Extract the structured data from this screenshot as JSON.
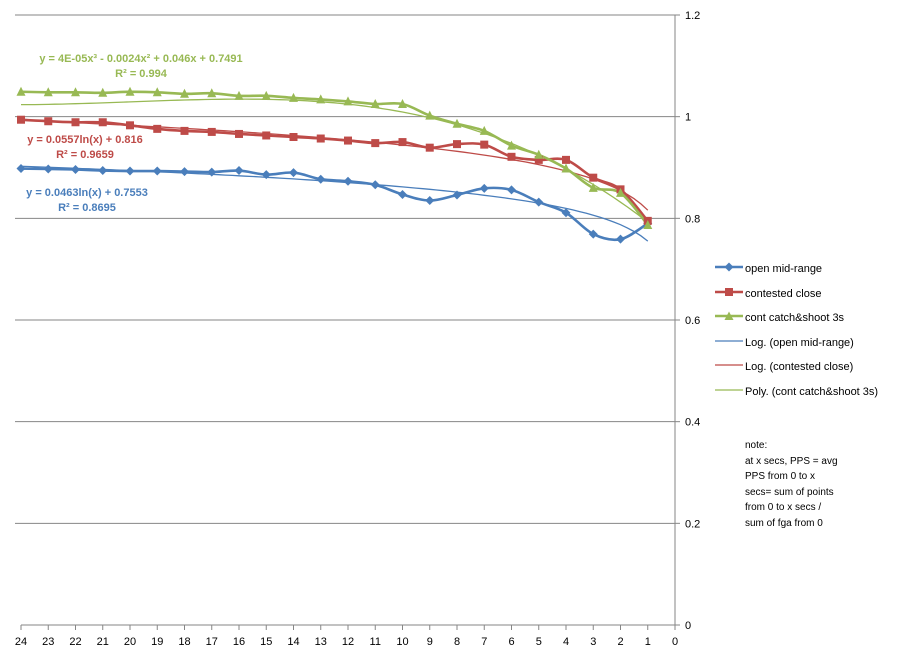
{
  "chart_data": {
    "type": "line",
    "x": [
      24,
      23,
      22,
      21,
      20,
      19,
      18,
      17,
      16,
      15,
      14,
      13,
      12,
      11,
      10,
      9,
      8,
      7,
      6,
      5,
      4,
      3,
      2,
      1
    ],
    "xlim": [
      24,
      0
    ],
    "x_ticks": [
      "24",
      "23",
      "22",
      "21",
      "20",
      "19",
      "18",
      "17",
      "16",
      "15",
      "14",
      "13",
      "12",
      "11",
      "10",
      "9",
      "8",
      "7",
      "6",
      "5",
      "4",
      "3",
      "2",
      "1",
      "0"
    ],
    "ylim": [
      0,
      1.2
    ],
    "y_ticks": [
      "0",
      "0.2",
      "0.4",
      "0.6",
      "0.8",
      "1",
      "1.2"
    ],
    "y_axis_position": "right",
    "grid": true,
    "legend_position": "right",
    "series": [
      {
        "name": "open mid-range",
        "color": "#4a7ebb",
        "marker": "diamond",
        "values": [
          0.898,
          0.897,
          0.896,
          0.894,
          0.893,
          0.893,
          0.892,
          0.891,
          0.894,
          0.886,
          0.89,
          0.877,
          0.873,
          0.866,
          0.847,
          0.835,
          0.846,
          0.859,
          0.856,
          0.832,
          0.811,
          0.769,
          0.759,
          0.79
        ]
      },
      {
        "name": "contested close",
        "color": "#be4b48",
        "marker": "square",
        "values": [
          0.994,
          0.991,
          0.989,
          0.989,
          0.983,
          0.976,
          0.972,
          0.97,
          0.966,
          0.963,
          0.96,
          0.957,
          0.953,
          0.948,
          0.95,
          0.939,
          0.946,
          0.945,
          0.921,
          0.915,
          0.915,
          0.88,
          0.857,
          0.795
        ]
      },
      {
        "name": "cont catch&shoot 3s",
        "color": "#98b954",
        "marker": "triangle",
        "values": [
          1.049,
          1.048,
          1.048,
          1.047,
          1.049,
          1.048,
          1.045,
          1.046,
          1.041,
          1.041,
          1.037,
          1.034,
          1.03,
          1.025,
          1.025,
          1.002,
          0.986,
          0.972,
          0.943,
          0.925,
          0.898,
          0.86,
          0.85,
          0.787
        ]
      }
    ],
    "trendlines": [
      {
        "name": "Log. (open mid-range)",
        "color": "#4a7ebb",
        "kind": "log",
        "a": 0.0463,
        "b": 0.7553
      },
      {
        "name": "Log. (contested close)",
        "color": "#be4b48",
        "kind": "log",
        "a": 0.0557,
        "b": 0.816
      },
      {
        "name": "Poly. (cont catch&shoot 3s)",
        "color": "#98b954",
        "kind": "poly",
        "coef": [
          4e-05,
          -0.0024,
          0.046,
          0.7491
        ]
      }
    ],
    "annotations": [
      {
        "id": "eq3a",
        "text": "y = 4E-05x³ - 0.0024x² + 0.046x + 0.7491",
        "color": "#98b954"
      },
      {
        "id": "eq3b",
        "text": "R² = 0.994",
        "color": "#98b954"
      },
      {
        "id": "eq2a",
        "text": "y = 0.0557ln(x) + 0.816",
        "color": "#be4b48"
      },
      {
        "id": "eq2b",
        "text": "R² = 0.9659",
        "color": "#be4b48"
      },
      {
        "id": "eq1a",
        "text": "y = 0.0463ln(x) + 0.7553",
        "color": "#4a7ebb"
      },
      {
        "id": "eq1b",
        "text": "R² = 0.8695",
        "color": "#4a7ebb"
      }
    ]
  },
  "legend": [
    {
      "label": "open mid-range",
      "color": "#4a7ebb",
      "marker": "diamond"
    },
    {
      "label": "contested close",
      "color": "#be4b48",
      "marker": "square"
    },
    {
      "label": "cont catch&shoot 3s",
      "color": "#98b954",
      "marker": "triangle"
    },
    {
      "label": "Log. (open mid-range)",
      "color": "#4a7ebb",
      "marker": "none"
    },
    {
      "label": "Log. (contested close)",
      "color": "#be4b48",
      "marker": "none"
    },
    {
      "label": "Poly. (cont catch&shoot 3s)",
      "color": "#98b954",
      "marker": "none"
    }
  ],
  "note": "note:\nat x secs, PPS = avg\nPPS from 0 to x\nsecs= sum of points\nfrom 0 to x secs /\nsum of fga from 0"
}
